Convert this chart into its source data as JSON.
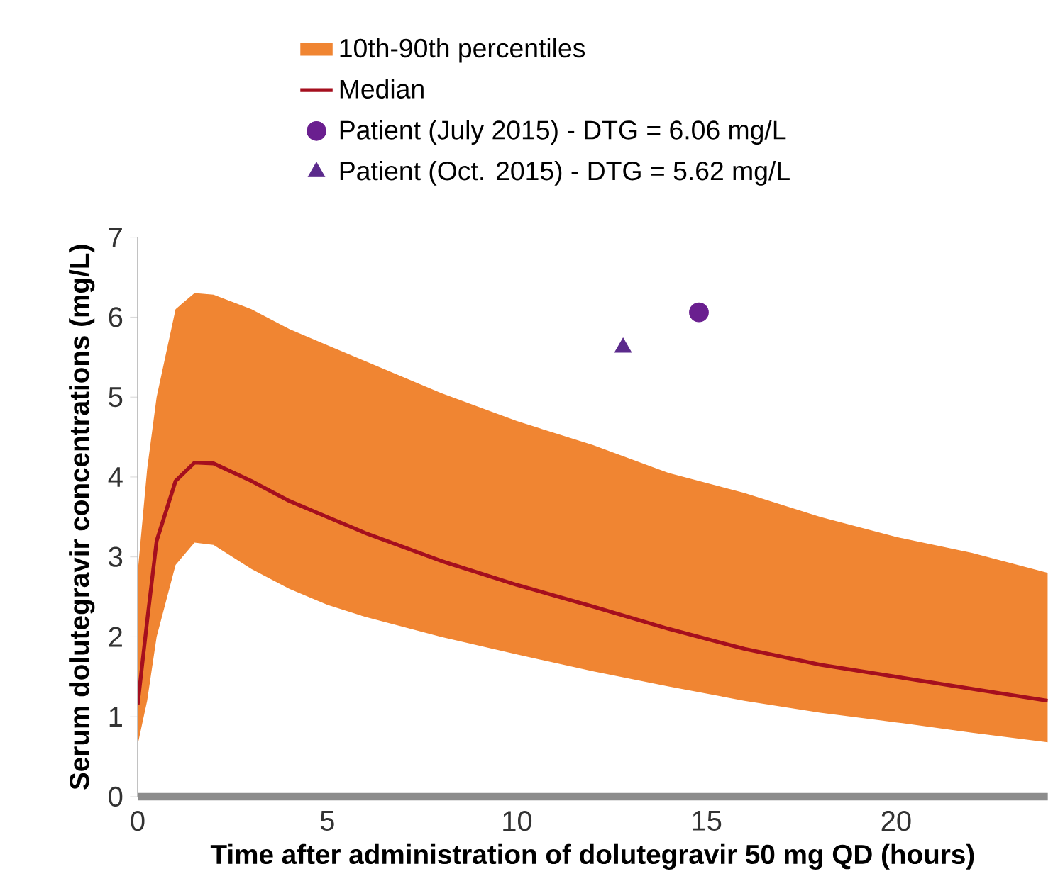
{
  "chart_data": {
    "type": "line",
    "xlabel": "Time after administration of dolutegravir 50 mg QD (hours)",
    "ylabel": "Serum dolutegravir concentrations (mg/L)",
    "xlim": [
      0,
      24
    ],
    "xticks": [
      0,
      5,
      10,
      15,
      20
    ],
    "ylim": [
      0,
      7
    ],
    "yticks": [
      0,
      1,
      2,
      3,
      4,
      5,
      6,
      7
    ],
    "legend": "top",
    "grid": false,
    "annotations": [
      "10th-90th percentiles"
    ],
    "series": [
      {
        "name": "Median",
        "color": "#a50f1e",
        "marker": "none",
        "x": [
          0,
          0.25,
          0.5,
          1,
          1.5,
          2,
          3,
          4,
          5,
          6,
          8,
          10,
          12,
          14,
          16,
          18,
          20,
          22,
          24
        ],
        "values": [
          1.15,
          2.2,
          3.2,
          3.95,
          4.18,
          4.17,
          3.95,
          3.7,
          3.5,
          3.3,
          2.95,
          2.65,
          2.38,
          2.1,
          1.85,
          1.65,
          1.5,
          1.35,
          1.2
        ],
        "lower": [
          0.65,
          1.2,
          2.0,
          2.9,
          3.18,
          3.15,
          2.85,
          2.6,
          2.4,
          2.25,
          2.0,
          1.78,
          1.57,
          1.38,
          1.2,
          1.05,
          0.93,
          0.8,
          0.68
        ],
        "upper": [
          2.8,
          4.1,
          5.0,
          6.1,
          6.3,
          6.28,
          6.1,
          5.85,
          5.65,
          5.45,
          5.05,
          4.7,
          4.4,
          4.05,
          3.8,
          3.5,
          3.25,
          3.05,
          2.8
        ]
      },
      {
        "type": "scatter",
        "name": "Patient (July 2015) - DTG = 6.06 mg/L",
        "color": "#6a1f8f",
        "marker": "circle",
        "x": [
          14.8
        ],
        "values": [
          6.06
        ]
      },
      {
        "type": "scatter",
        "name": "Patient (Oct. 2015) - DTG = 5.62 mg/L",
        "color": "#5b2a8c",
        "marker": "triangle",
        "x": [
          12.8
        ],
        "values": [
          5.62
        ]
      }
    ]
  }
}
